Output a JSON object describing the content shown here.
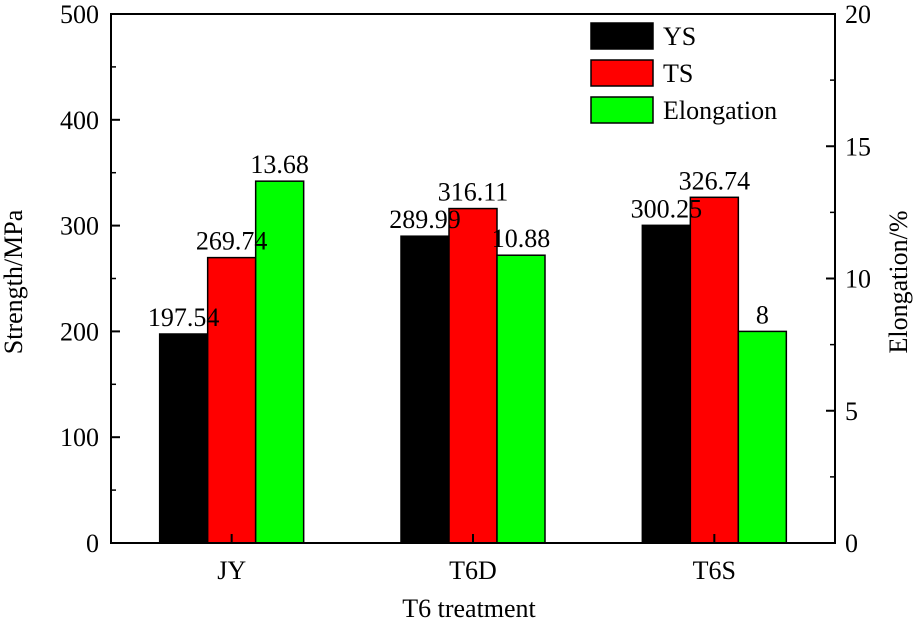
{
  "chart_data": {
    "type": "bar",
    "categories": [
      "JY",
      "T6D",
      "T6S"
    ],
    "xlabel": "T6 treatment",
    "ylabel": "Strength/MPa",
    "y2label": "Elongation/%",
    "ylim": [
      0,
      500
    ],
    "y2lim": [
      0,
      20
    ],
    "yticks": [
      "0",
      "100",
      "200",
      "300",
      "400",
      "500"
    ],
    "y2ticks": [
      "0",
      "5",
      "10",
      "15",
      "20"
    ],
    "legend_position": "top-right",
    "grid": false,
    "series": [
      {
        "name": "YS",
        "axis": "left",
        "color": "#000000",
        "values": [
          197.54,
          289.99,
          300.25
        ],
        "labels": [
          "197.54",
          "289.99",
          "300.25"
        ]
      },
      {
        "name": "TS",
        "axis": "left",
        "color": "#ff0000",
        "values": [
          269.74,
          316.11,
          326.74
        ],
        "labels": [
          "269.74",
          "316.11",
          "326.74"
        ]
      },
      {
        "name": "Elongation",
        "axis": "right",
        "color": "#00ff00",
        "values": [
          13.68,
          10.88,
          8
        ],
        "labels": [
          "13.68",
          "10.88",
          "8"
        ]
      }
    ]
  }
}
